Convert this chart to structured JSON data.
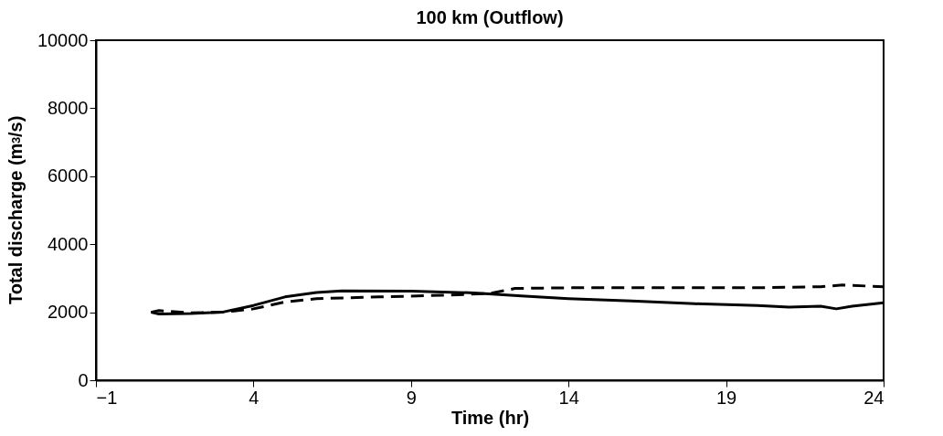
{
  "chart_data": {
    "type": "line",
    "title": "100 km (Outflow)",
    "xlabel": "Time (hr)",
    "ylabel": "Total discharge (m$^{3}$/s)",
    "xlim": [
      -1,
      24
    ],
    "xticks": [
      -1,
      4,
      9,
      14,
      19,
      24
    ],
    "ylim": [
      0,
      10000
    ],
    "yticks": [
      0,
      2000,
      4000,
      6000,
      8000,
      10000
    ],
    "grid": false,
    "series": [
      {
        "color": "#000000",
        "line_style": "solid",
        "x": [
          0.75,
          1,
          2,
          3,
          4,
          5,
          6,
          6.8,
          9,
          11,
          12.5,
          14,
          16,
          18,
          20,
          21,
          22,
          22.5,
          23,
          24
        ],
        "values": [
          2000,
          1950,
          1960,
          2000,
          2200,
          2450,
          2580,
          2630,
          2620,
          2570,
          2480,
          2400,
          2330,
          2250,
          2200,
          2150,
          2180,
          2100,
          2180,
          2280
        ]
      },
      {
        "color": "#000000",
        "line_style": "dashed",
        "x": [
          0.75,
          1,
          2,
          3,
          4,
          5,
          6,
          8,
          10,
          11.5,
          12.3,
          14,
          20,
          22,
          22.7,
          24
        ],
        "values": [
          2000,
          2050,
          1980,
          2000,
          2100,
          2300,
          2400,
          2450,
          2500,
          2550,
          2700,
          2720,
          2720,
          2750,
          2800,
          2750
        ]
      }
    ]
  }
}
